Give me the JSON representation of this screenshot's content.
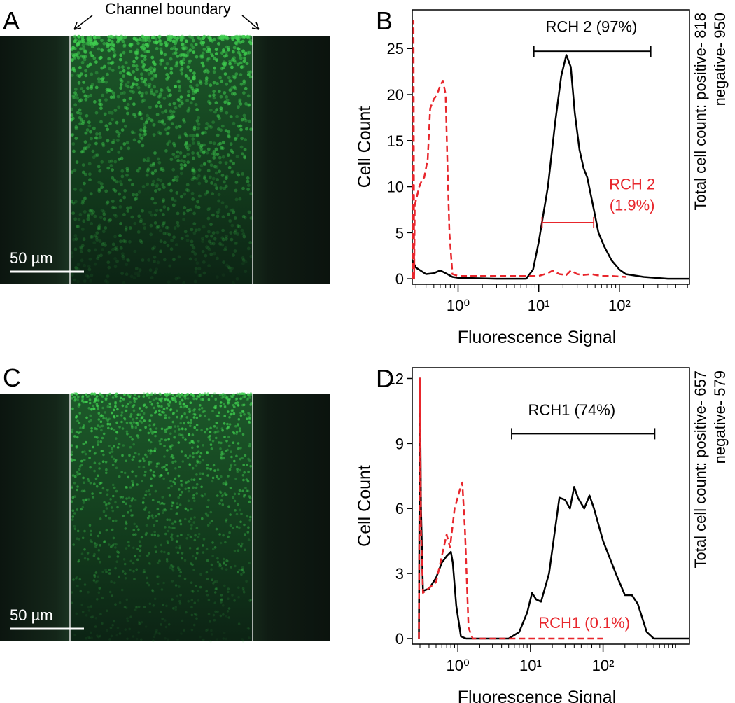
{
  "images": [
    {
      "panel_label": "A",
      "scale_label": "50 µm",
      "annotation": "Channel boundary"
    },
    {
      "panel_label": "C",
      "scale_label": "50 µm"
    }
  ],
  "chart_data": [
    {
      "type": "line",
      "panel_label": "B",
      "ylabel": "Cell Count",
      "xlabel": "Fluorescence Signal",
      "side_text": [
        "Total cell count: positive- 818",
        "negative- 950"
      ],
      "xscale": "log",
      "xlim": [
        0.27,
        740
      ],
      "ylim": [
        -0.6,
        29.2
      ],
      "xticks": [
        {
          "value": 1,
          "label": "10⁰"
        },
        {
          "value": 10,
          "label": "10¹"
        },
        {
          "value": 100,
          "label": "10²"
        }
      ],
      "yticks": [
        0,
        5,
        10,
        15,
        20,
        25
      ],
      "series": [
        {
          "color": "#000000",
          "dash": false,
          "x": [
            0.27,
            0.3,
            0.4,
            0.5,
            0.6,
            0.7,
            0.85,
            1,
            3,
            7,
            8.5,
            10,
            13,
            16,
            19,
            22,
            25,
            28,
            32,
            36,
            40,
            47,
            55,
            65,
            80,
            100,
            120,
            200,
            400,
            740
          ],
          "values": [
            2,
            1.2,
            0.5,
            0.6,
            0.9,
            0.6,
            0.2,
            0.1,
            0,
            0,
            1,
            4,
            10,
            17,
            22,
            24.3,
            23,
            18,
            14,
            12,
            11,
            8,
            5,
            3.5,
            2,
            1,
            0.5,
            0.2,
            0,
            0
          ]
        },
        {
          "color": "#e8262c",
          "dash": true,
          "x": [
            0.275,
            0.28,
            0.285,
            0.29,
            0.3,
            0.33,
            0.36,
            0.38,
            0.42,
            0.45,
            0.5,
            0.55,
            0.6,
            0.65,
            0.7,
            0.74,
            0.78,
            0.85,
            1,
            5,
            10,
            13,
            15,
            18,
            22,
            25,
            30,
            35,
            45,
            60,
            80,
            120
          ],
          "values": [
            0,
            28,
            0,
            8,
            8.5,
            10,
            10.8,
            11,
            13,
            18.5,
            19.5,
            20,
            21,
            21.5,
            20,
            12,
            5,
            0.5,
            0.3,
            0.3,
            0.3,
            0.6,
            0.9,
            0.5,
            0.4,
            0.9,
            0.5,
            0.4,
            0.5,
            0.3,
            0.3,
            0.2
          ]
        }
      ],
      "annotations": [
        {
          "text": [
            "RCH 2 (97%)"
          ],
          "color": "#000000",
          "x": 45,
          "y": 26.8,
          "range": [
            8.7,
            245
          ],
          "range_y": 24.7
        },
        {
          "text": [
            "RCH 2",
            "(1.9%)"
          ],
          "color": "#e8262c",
          "x": 144,
          "y": 9.7,
          "range": [
            11,
            48
          ],
          "range_y": 6.1
        }
      ]
    },
    {
      "type": "line",
      "panel_label": "D",
      "ylabel": "Cell Count",
      "xlabel": "Fluorescence Signal",
      "side_text": [
        "Total cell count: positive- 657",
        "negative- 579"
      ],
      "xscale": "log",
      "xlim": [
        0.235,
        1550
      ],
      "ylim": [
        -0.26,
        12.5
      ],
      "xticks": [
        {
          "value": 1,
          "label": "10⁰"
        },
        {
          "value": 10,
          "label": "10¹"
        },
        {
          "value": 100,
          "label": "10²"
        }
      ],
      "yticks": [
        0,
        3,
        6,
        9,
        12
      ],
      "series": [
        {
          "color": "#000000",
          "dash": false,
          "x": [
            0.29,
            0.3,
            0.31,
            0.33,
            0.4,
            0.5,
            0.6,
            0.7,
            0.8,
            0.85,
            0.95,
            1.1,
            1.3,
            5,
            7,
            9,
            10.5,
            12,
            14,
            18,
            25,
            30,
            35,
            40,
            45,
            55,
            65,
            75,
            100,
            150,
            200,
            250,
            300,
            400,
            500,
            1550
          ],
          "values": [
            0,
            12,
            6,
            2.2,
            2.3,
            2.8,
            3.5,
            3.8,
            4,
            3.5,
            1.5,
            0.1,
            0,
            0,
            0.3,
            1.2,
            2.1,
            1.8,
            1.7,
            3,
            6.5,
            6.4,
            6,
            7,
            6.5,
            6,
            6.6,
            6,
            4.5,
            3,
            2,
            2,
            1.6,
            0.3,
            0,
            0
          ]
        },
        {
          "color": "#e8262c",
          "dash": true,
          "x": [
            0.29,
            0.3,
            0.31,
            0.33,
            0.5,
            0.7,
            0.78,
            0.9,
            1.05,
            1.15,
            1.25,
            1.4,
            1.6,
            50,
            100
          ],
          "values": [
            0,
            12,
            5,
            2.1,
            2.6,
            4.8,
            4.2,
            6,
            6.8,
            7.2,
            5,
            0.5,
            0,
            0,
            0
          ]
        }
      ],
      "annotations": [
        {
          "text": [
            "RCH1 (74%)"
          ],
          "color": "#000000",
          "x": 37,
          "y": 10.3,
          "range": [
            5.5,
            515
          ],
          "range_y": 9.45
        },
        {
          "text": [
            "RCH1 (0.1%)"
          ],
          "color": "#e8262c",
          "x": 55,
          "y": 0.48
        }
      ]
    }
  ]
}
